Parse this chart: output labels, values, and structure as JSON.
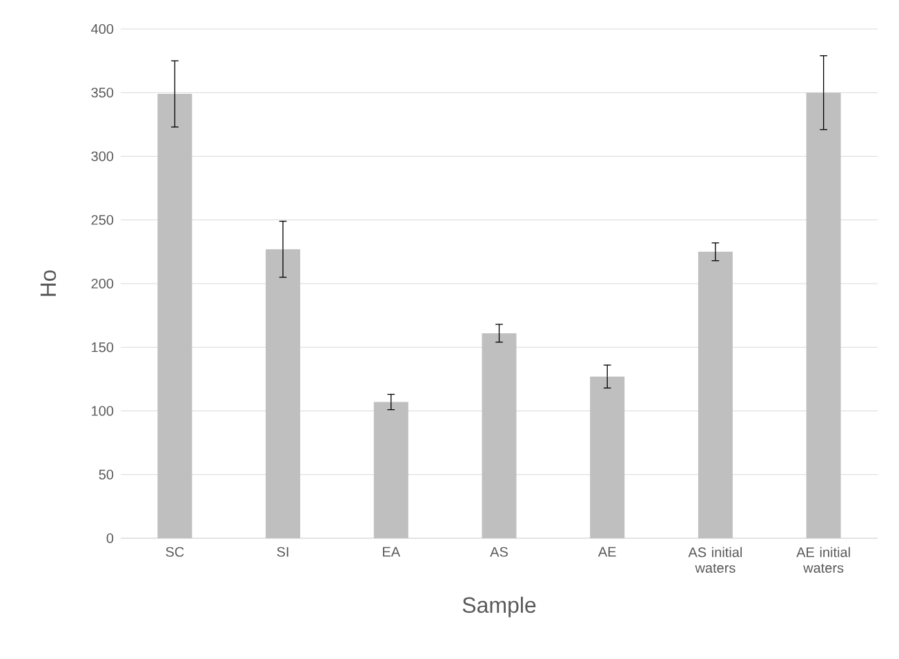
{
  "chart_data": {
    "type": "bar",
    "xlabel": "Sample",
    "ylabel": "Ho",
    "categories": [
      "SC",
      "SI",
      "EA",
      "AS",
      "AE",
      "AS initial waters",
      "AE initial waters"
    ],
    "values": [
      349,
      227,
      107,
      161,
      127,
      225,
      350
    ],
    "errors": [
      26,
      22,
      6,
      7,
      9,
      7,
      29
    ],
    "color": "#bfbfbf",
    "ylim": [
      0,
      400
    ],
    "yticks": [
      0,
      50,
      100,
      150,
      200,
      250,
      300,
      350,
      400
    ],
    "grid": "y"
  }
}
